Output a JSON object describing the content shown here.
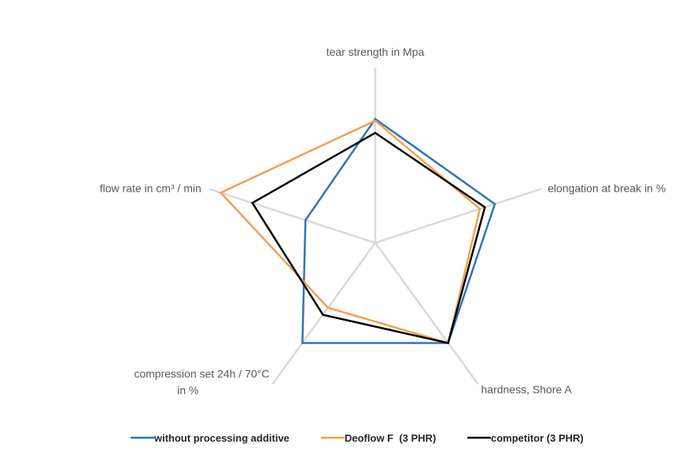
{
  "chart_data": {
    "type": "radar",
    "axes": [
      "tear strength in Mpa",
      "elongation at break in %",
      "hardness, Shore A",
      "compression set 24h / 70°C in %",
      "flow rate in cm³ / min"
    ],
    "axis_label_lines": [
      [
        "tear strength in Mpa"
      ],
      [
        "elongation at break in %"
      ],
      [
        "hardness, Shore A"
      ],
      [
        "compression set 24h / 70°C",
        "in %"
      ],
      [
        "flow rate in cm³ / min"
      ]
    ],
    "rmax": 1.0,
    "grid": true,
    "legend_position": "bottom",
    "series": [
      {
        "name": "without processing additive",
        "color": "#2e75b6",
        "values": [
          0.71,
          0.72,
          0.71,
          0.71,
          0.42
        ]
      },
      {
        "name": "Deoflow F  (3 PHR)",
        "color": "#f4a04e",
        "values": [
          0.7,
          0.63,
          0.71,
          0.46,
          0.93
        ]
      },
      {
        "name": "competitor (3 PHR)",
        "color": "#000000",
        "values": [
          0.63,
          0.66,
          0.71,
          0.51,
          0.74
        ]
      }
    ]
  }
}
